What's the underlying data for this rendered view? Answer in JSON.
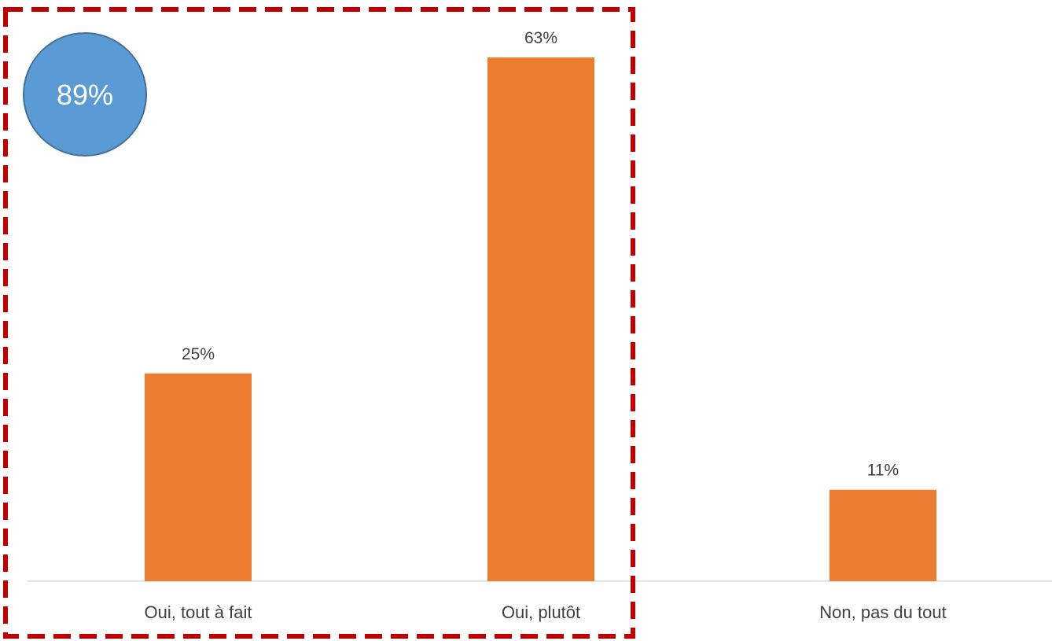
{
  "chart_data": {
    "type": "bar",
    "categories": [
      "Oui, tout à fait",
      "Oui, plutôt",
      "Non, pas du tout"
    ],
    "values": [
      25,
      63,
      11
    ],
    "value_labels": [
      "25%",
      "63%",
      "11%"
    ],
    "ylim": [
      0,
      70
    ],
    "grid": false,
    "bar_color": "#ED7D31",
    "highlight": {
      "label": "89%",
      "bubble_color": "#5B9BD5",
      "bubble_border": "#41719C",
      "box_color": "#C00000",
      "covers_categories": [
        0,
        1
      ]
    }
  }
}
